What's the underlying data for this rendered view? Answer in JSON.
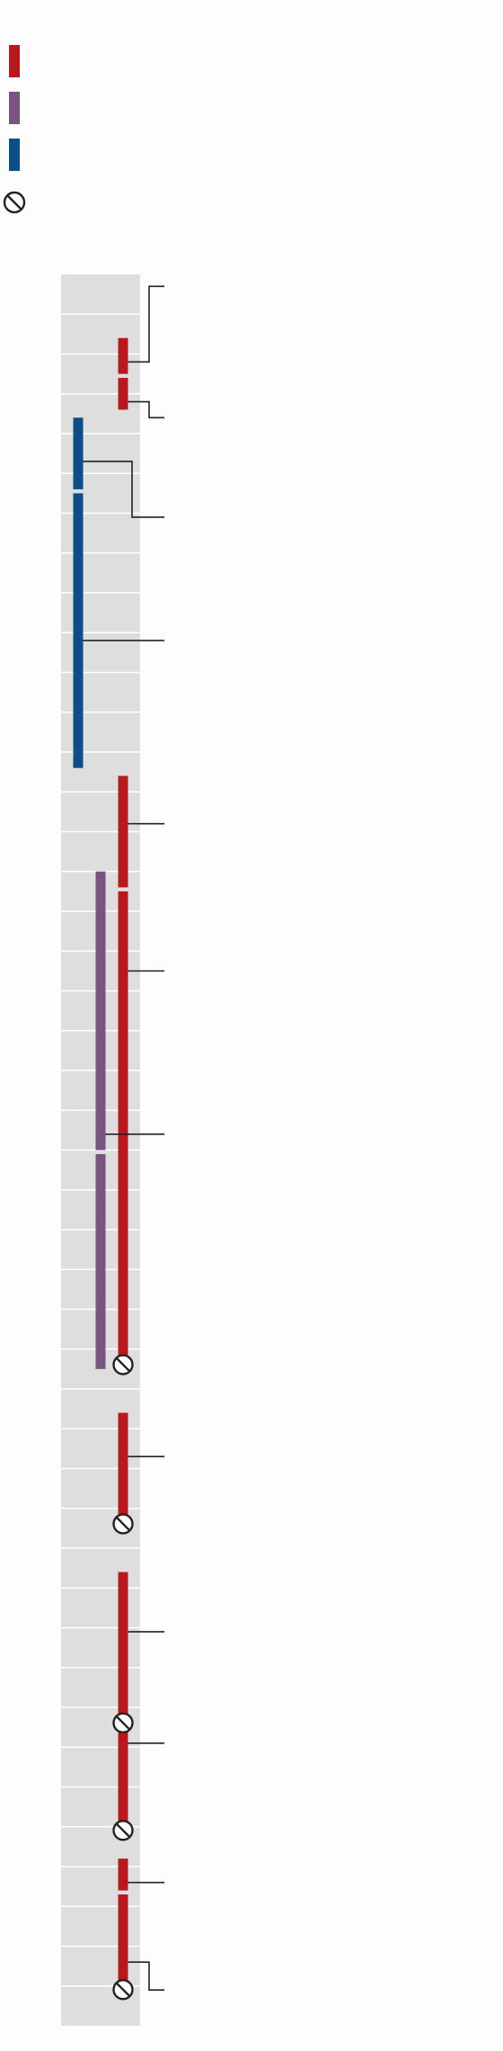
{
  "colors": {
    "background": "#fdfdfd",
    "track": "#dedede",
    "row_divider": "#ffffff",
    "red_series": "#b8191d",
    "purple_series": "#7a5480",
    "blue_series": "#0b4f86",
    "connector": "#222222",
    "end_marker": "#222222"
  },
  "legend": {
    "items": [
      {
        "name": "red-legend-swatch",
        "color": "#b8191d",
        "icon": "swatch"
      },
      {
        "name": "purple-legend-swatch",
        "color": "#7a5480",
        "icon": "swatch"
      },
      {
        "name": "blue-legend-swatch",
        "color": "#0b4f86",
        "icon": "swatch"
      },
      {
        "name": "end-marker-legend-icon",
        "color": "#222222",
        "icon": "prohibited-circle-icon"
      }
    ]
  },
  "timeline": {
    "row_count": 44,
    "events": [
      {
        "name": "event-red-1",
        "series": "red",
        "start": 1.6,
        "end": 2.5,
        "ended": false
      },
      {
        "name": "event-red-2",
        "series": "red",
        "start": 2.6,
        "end": 3.4,
        "ended": false
      },
      {
        "name": "event-blue-1",
        "series": "blue",
        "start": 3.6,
        "end": 5.4,
        "ended": false
      },
      {
        "name": "event-blue-2",
        "series": "blue",
        "start": 5.5,
        "end": 12.4,
        "ended": false
      },
      {
        "name": "event-red-3",
        "series": "red",
        "start": 12.6,
        "end": 15.4,
        "ended": false
      },
      {
        "name": "event-red-4",
        "series": "red",
        "start": 15.5,
        "end": 27.3,
        "ended": true
      },
      {
        "name": "event-purple-1",
        "series": "purple",
        "start": 15.0,
        "end": 22.0,
        "ended": false
      },
      {
        "name": "event-purple-2",
        "series": "purple",
        "start": 22.1,
        "end": 27.5,
        "ended": false
      },
      {
        "name": "event-red-5",
        "series": "red",
        "start": 28.6,
        "end": 31.3,
        "ended": true
      },
      {
        "name": "event-red-6",
        "series": "red",
        "start": 32.6,
        "end": 36.3,
        "ended": true
      },
      {
        "name": "event-red-7",
        "series": "red",
        "start": 36.6,
        "end": 39.0,
        "ended": true
      },
      {
        "name": "event-red-8",
        "series": "red",
        "start": 39.8,
        "end": 40.6,
        "ended": false
      },
      {
        "name": "event-red-9",
        "series": "red",
        "start": 40.7,
        "end": 43.0,
        "ended": true
      }
    ],
    "annotations": [
      {
        "name": "annotation-1",
        "series": "red",
        "from": 2.2,
        "to": 0.3,
        "style": "elbow-up"
      },
      {
        "name": "annotation-2",
        "series": "red",
        "from": 3.2,
        "to": 3.6,
        "style": "elbow-down"
      },
      {
        "name": "annotation-3",
        "series": "blue",
        "from": 4.7,
        "to": 6.1,
        "style": "elbow-down-short"
      },
      {
        "name": "annotation-4",
        "series": "blue",
        "from": 9.2,
        "to": 9.2,
        "style": "straight"
      },
      {
        "name": "annotation-5",
        "series": "red",
        "from": 13.8,
        "to": 13.8,
        "style": "straight"
      },
      {
        "name": "annotation-6",
        "series": "red",
        "from": 17.5,
        "to": 17.5,
        "style": "straight"
      },
      {
        "name": "annotation-7",
        "series": "purple",
        "from": 21.6,
        "to": 21.6,
        "style": "straight"
      },
      {
        "name": "annotation-8",
        "series": "red",
        "from": 29.7,
        "to": 29.7,
        "style": "straight"
      },
      {
        "name": "annotation-9",
        "series": "red",
        "from": 34.1,
        "to": 34.1,
        "style": "straight"
      },
      {
        "name": "annotation-10",
        "series": "red",
        "from": 36.9,
        "to": 36.9,
        "style": "straight"
      },
      {
        "name": "annotation-11",
        "series": "red",
        "from": 40.4,
        "to": 40.4,
        "style": "straight"
      },
      {
        "name": "annotation-12",
        "series": "red",
        "from": 42.4,
        "to": 43.1,
        "style": "elbow-down"
      }
    ]
  }
}
